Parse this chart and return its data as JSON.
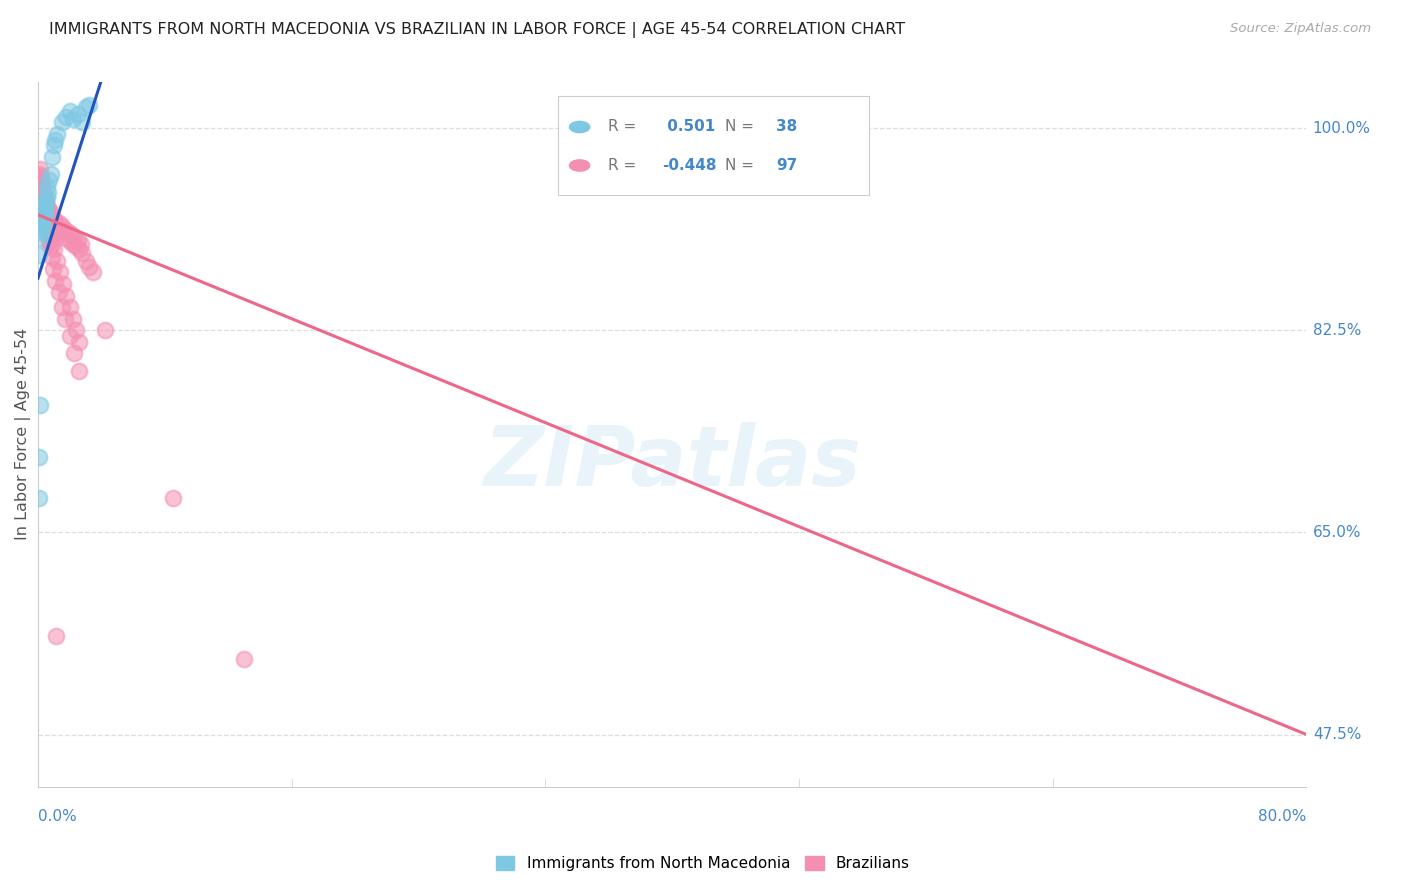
{
  "title": "IMMIGRANTS FROM NORTH MACEDONIA VS BRAZILIAN IN LABOR FORCE | AGE 45-54 CORRELATION CHART",
  "source": "Source: ZipAtlas.com",
  "ylabel": "In Labor Force | Age 45-54",
  "xlim": [
    0.0,
    80.0
  ],
  "ylim": [
    43.0,
    104.0
  ],
  "ytick_vals": [
    47.5,
    65.0,
    82.5,
    100.0
  ],
  "ytick_labels": [
    "47.5%",
    "65.0%",
    "82.5%",
    "100.0%"
  ],
  "blue_R": 0.501,
  "blue_N": 38,
  "pink_R": -0.448,
  "pink_N": 97,
  "blue_color": "#7EC8E3",
  "pink_color": "#F48FB1",
  "blue_line_color": "#2255BB",
  "pink_line_color": "#EE6688",
  "legend_label_blue": "Immigrants from North Macedonia",
  "legend_label_pink": "Brazilians",
  "watermark": "ZIPatlas",
  "blue_x": [
    0.05,
    0.08,
    0.1,
    0.15,
    0.18,
    0.2,
    0.22,
    0.25,
    0.28,
    0.3,
    0.32,
    0.35,
    0.38,
    0.4,
    0.42,
    0.45,
    0.48,
    0.5,
    0.55,
    0.6,
    0.65,
    0.7,
    0.8,
    0.9,
    1.0,
    1.1,
    1.2,
    1.5,
    1.8,
    2.0,
    2.2,
    2.5,
    2.8,
    3.0,
    3.2,
    0.12,
    0.08,
    0.06
  ],
  "blue_y": [
    89.0,
    90.5,
    91.0,
    91.5,
    92.0,
    91.8,
    92.5,
    93.0,
    92.0,
    91.5,
    92.8,
    93.5,
    92.5,
    93.0,
    91.0,
    92.5,
    93.2,
    93.8,
    94.0,
    95.0,
    94.5,
    95.5,
    96.0,
    97.5,
    98.5,
    99.0,
    99.5,
    100.5,
    101.0,
    101.5,
    100.8,
    101.2,
    100.5,
    101.8,
    102.0,
    76.0,
    71.5,
    68.0
  ],
  "pink_x": [
    0.05,
    0.08,
    0.1,
    0.12,
    0.15,
    0.18,
    0.2,
    0.22,
    0.25,
    0.28,
    0.3,
    0.32,
    0.35,
    0.38,
    0.4,
    0.42,
    0.45,
    0.48,
    0.5,
    0.55,
    0.6,
    0.65,
    0.7,
    0.75,
    0.8,
    0.85,
    0.9,
    0.95,
    1.0,
    1.1,
    1.2,
    1.3,
    1.4,
    1.5,
    1.6,
    1.7,
    1.8,
    1.9,
    2.0,
    2.1,
    2.2,
    2.3,
    2.4,
    2.5,
    2.6,
    2.7,
    2.8,
    3.0,
    3.2,
    3.5,
    0.15,
    0.2,
    0.25,
    0.3,
    0.35,
    0.4,
    0.45,
    0.5,
    0.6,
    0.7,
    0.8,
    0.9,
    1.0,
    1.2,
    1.4,
    1.6,
    1.8,
    2.0,
    2.2,
    2.4,
    2.6,
    0.18,
    0.28,
    0.38,
    0.48,
    0.58,
    0.68,
    0.78,
    0.88,
    0.98,
    1.1,
    1.3,
    1.5,
    1.7,
    2.0,
    2.3,
    2.6,
    0.22,
    0.32,
    0.42,
    0.52,
    0.62,
    0.72,
    1.15,
    4.2,
    8.5,
    13.0
  ],
  "pink_y": [
    96.0,
    95.5,
    96.5,
    95.0,
    95.8,
    94.5,
    95.2,
    94.8,
    94.0,
    94.5,
    93.8,
    94.2,
    93.5,
    94.0,
    93.2,
    93.8,
    93.0,
    93.5,
    92.8,
    93.2,
    92.5,
    93.0,
    92.2,
    92.8,
    92.0,
    92.5,
    91.8,
    92.2,
    91.5,
    92.0,
    91.2,
    91.8,
    91.0,
    91.5,
    90.8,
    91.2,
    90.5,
    91.0,
    90.2,
    90.8,
    90.0,
    90.5,
    89.8,
    90.2,
    89.5,
    90.0,
    89.2,
    88.5,
    88.0,
    87.5,
    95.5,
    95.0,
    94.5,
    94.0,
    93.5,
    93.0,
    92.5,
    92.0,
    91.5,
    91.0,
    90.5,
    90.0,
    89.5,
    88.5,
    87.5,
    86.5,
    85.5,
    84.5,
    83.5,
    82.5,
    81.5,
    95.8,
    94.8,
    93.8,
    92.8,
    91.8,
    90.8,
    89.8,
    88.8,
    87.8,
    86.8,
    85.8,
    84.5,
    83.5,
    82.0,
    80.5,
    79.0,
    95.2,
    94.2,
    93.2,
    92.2,
    91.2,
    90.2,
    56.0,
    82.5,
    68.0,
    54.0
  ]
}
